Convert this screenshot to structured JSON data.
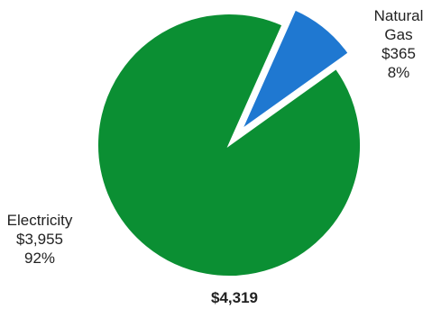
{
  "chart_data": {
    "type": "pie",
    "title": "",
    "total_label": "$4,319",
    "slices": [
      {
        "name": "Natural Gas",
        "name_lines": [
          "Natural",
          "Gas"
        ],
        "value": 365,
        "value_label": "$365",
        "percent_label": "8%",
        "color": "#1f78d1",
        "exploded": true
      },
      {
        "name": "Electricity",
        "name_lines": [
          "Electricity"
        ],
        "value": 3955,
        "value_label": "$3,955",
        "percent_label": "92%",
        "color": "#0b8f33",
        "exploded": false
      }
    ]
  }
}
